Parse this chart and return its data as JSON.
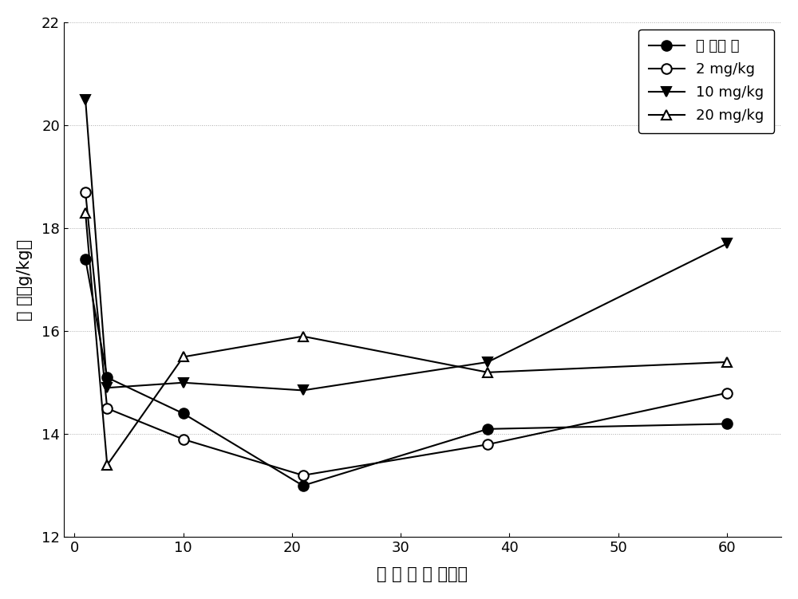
{
  "x_values": [
    1,
    3,
    10,
    21,
    38,
    60
  ],
  "series": [
    {
      "label": "空 白对 照",
      "y": [
        17.4,
        15.1,
        14.4,
        13.0,
        14.1,
        14.2
      ],
      "marker": "o",
      "markerfacecolor": "black",
      "markeredgecolor": "black",
      "color": "black",
      "linestyle": "-"
    },
    {
      "label": "2 mg/kg",
      "y": [
        18.7,
        14.5,
        13.9,
        13.2,
        13.8,
        14.8
      ],
      "marker": "o",
      "markerfacecolor": "white",
      "markeredgecolor": "black",
      "color": "black",
      "linestyle": "-"
    },
    {
      "label": "10 mg/kg",
      "y": [
        20.5,
        14.9,
        15.0,
        14.85,
        15.4,
        17.7
      ],
      "marker": "v",
      "markerfacecolor": "black",
      "markeredgecolor": "black",
      "color": "black",
      "linestyle": "-"
    },
    {
      "label": "20 mg/kg",
      "y": [
        18.3,
        13.4,
        15.5,
        15.9,
        15.2,
        15.4
      ],
      "marker": "^",
      "markerfacecolor": "white",
      "markeredgecolor": "black",
      "color": "black",
      "linestyle": "-"
    }
  ],
  "xlabel": "堆 肥 时 间 （天）",
  "ylabel": "总 氮（g/kg）",
  "xlim": [
    -1,
    65
  ],
  "ylim": [
    12,
    22
  ],
  "xticks": [
    0,
    10,
    20,
    30,
    40,
    50,
    60
  ],
  "yticks": [
    12,
    14,
    16,
    18,
    20,
    22
  ],
  "markersize": 9,
  "linewidth": 1.5,
  "background_color": "#ffffff",
  "legend_loc": "upper right",
  "legend_fontsize": 13,
  "axis_fontsize": 15,
  "tick_fontsize": 13,
  "grid_linestyle": "dotted",
  "grid_color": "#aaaaaa",
  "grid_linewidth": 0.7
}
